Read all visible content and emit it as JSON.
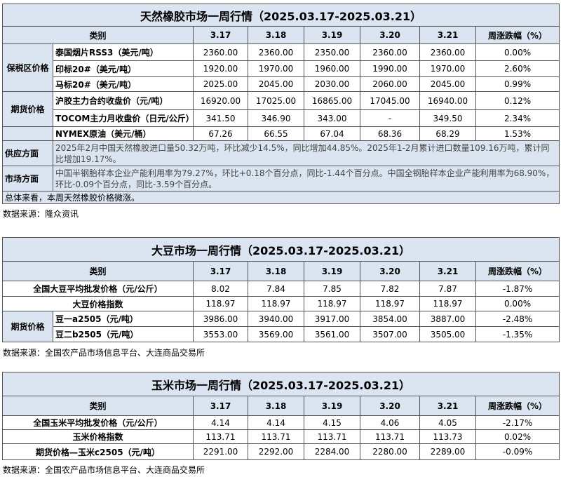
{
  "tables": [
    {
      "title": "天然橡胶市场一周行情（2025.03.17-2025.03.21）",
      "header": [
        "类别",
        "3.17",
        "3.18",
        "3.19",
        "3.20",
        "3.21",
        "周涨跌幅（%）"
      ],
      "sections": [
        {
          "name": "保税区价格",
          "rows": [
            {
              "label": "泰国烟片RSS3（美元/吨）",
              "values": [
                "2360.00",
                "2360.00",
                "2350.00",
                "2360.00",
                "2360.00",
                "0.00%"
              ]
            },
            {
              "label": "印标20#（美元/吨）",
              "values": [
                "1920.00",
                "1970.00",
                "1960.00",
                "1990.00",
                "1970.00",
                "2.60%"
              ]
            },
            {
              "label": "马标20#（美元/吨）",
              "values": [
                "2025.00",
                "2045.00",
                "2030.00",
                "2060.00",
                "2045.00",
                "0.99%"
              ]
            }
          ]
        },
        {
          "name": "期货价格",
          "rows": [
            {
              "label": "沪胶主力合约收盘价（元/吨）",
              "values": [
                "16920.00",
                "17025.00",
                "16865.00",
                "17045.00",
                "16940.00",
                "0.12%"
              ]
            },
            {
              "label": "TOCOM主力月收盘价（日元/公斤）",
              "values": [
                "341.50",
                "346.90",
                "343.00",
                "-",
                "349.50",
                "2.34%"
              ]
            }
          ]
        },
        {
          "rows": [
            {
              "label": "NYMEX原油（美元/桶）",
              "values": [
                "67.26",
                "66.55",
                "67.04",
                "68.36",
                "68.29",
                "1.53%"
              ]
            }
          ]
        }
      ],
      "notes": [
        {
          "label": "供应方面",
          "text": "2025年2月中国天然橡胶进口量50.32万吨，环比减少14.5%，同比增加44.85%。2025年1-2月累计进口数量109.16万吨，累计同比增加19.17%。"
        },
        {
          "label": "市场方面",
          "text": "中国半钢胎样本企业产能利用率为79.27%，环比+0.18个百分点，同比-1.44个百分点。中国全钢胎样本企业产能利用率为68.90%，环比-0.09个百分点，同比-3.59个百分点。"
        }
      ],
      "summary": "总体来看，本周天然橡胶价格微涨。",
      "source": "数据来源：隆众资讯"
    },
    {
      "title": "大豆市场一周行情（2025.03.17-2025.03.21）",
      "header": [
        "类别",
        "3.17",
        "3.18",
        "3.19",
        "3.20",
        "3.21",
        "周涨跌幅（%）"
      ],
      "sections": [
        {
          "rows": [
            {
              "label": "全国大豆平均批发价格（元/公斤）",
              "values": [
                "8.02",
                "7.84",
                "7.85",
                "7.82",
                "7.87",
                "-1.87%"
              ]
            },
            {
              "label": "大豆价格指数",
              "values": [
                "118.97",
                "118.97",
                "118.97",
                "118.97",
                "118.97",
                "0.00%"
              ]
            }
          ]
        },
        {
          "name": "期货价格",
          "rows": [
            {
              "label": "豆一a2505（元/吨）",
              "values": [
                "3986.00",
                "3940.00",
                "3917.00",
                "3854.00",
                "3887.00",
                "-2.48%"
              ]
            },
            {
              "label": "豆二b2505（元/吨）",
              "values": [
                "3553.00",
                "3569.00",
                "3561.00",
                "3507.00",
                "3505.00",
                "-1.35%"
              ]
            }
          ]
        }
      ],
      "source": "数据来源：全国农产品市场信息平台、大连商品交易所"
    },
    {
      "title": "玉米市场一周行情（2025.03.17-2025.03.21）",
      "header": [
        "类别",
        "3.17",
        "3.18",
        "3.19",
        "3.20",
        "3.21",
        "周涨跌幅（%）"
      ],
      "sections": [
        {
          "rows": [
            {
              "label": "全国玉米平均批发价格（元/公斤）",
              "values": [
                "4.14",
                "4.14",
                "4.15",
                "4.06",
                "4.05",
                "-2.17%"
              ]
            },
            {
              "label": "玉米价格指数",
              "values": [
                "113.71",
                "113.71",
                "113.71",
                "113.71",
                "113.73",
                "0.02%"
              ]
            },
            {
              "label": "期货价格—玉米c2505（元/吨）",
              "values": [
                "2291.00",
                "2292.00",
                "2284.00",
                "2280.00",
                "2289.00",
                "-0.09%"
              ]
            }
          ]
        }
      ],
      "source": "数据来源：全国农产品市场信息平台、大连商品交易所"
    }
  ]
}
